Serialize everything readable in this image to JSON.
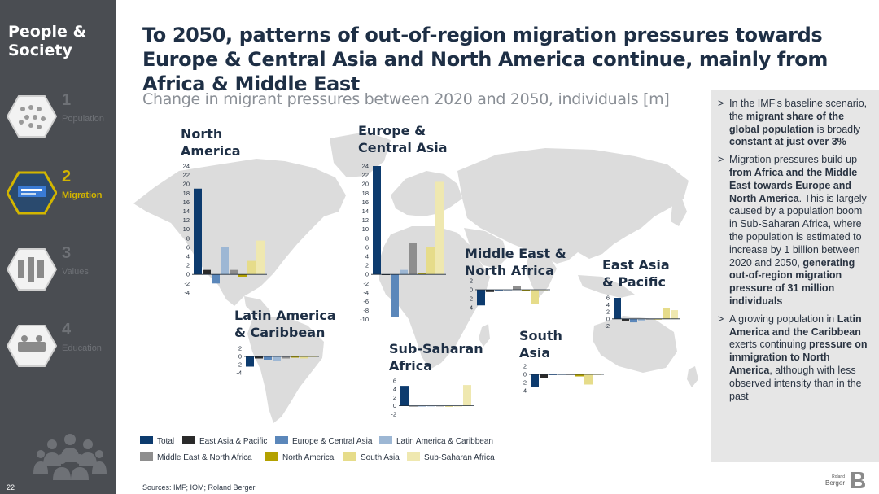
{
  "sidebar": {
    "title": "People & Society",
    "items": [
      {
        "num": "1",
        "label": "Population",
        "active": false
      },
      {
        "num": "2",
        "label": "Migration",
        "active": true
      },
      {
        "num": "3",
        "label": "Values",
        "active": false
      },
      {
        "num": "4",
        "label": "Education",
        "active": false
      }
    ],
    "page_number": "22"
  },
  "header": {
    "title": "To 2050, patterns of out-of-region migration pressures towards Europe & Central Asia and North America continue, mainly from Africa & Middle East",
    "subtitle": "Change in migrant pressures between 2020 and 2050, individuals [m]"
  },
  "colors": {
    "Total": "#0d3b6e",
    "East Asia & Pacific": "#2a2a2a",
    "Europe & Central Asia": "#5b87ba",
    "Latin America & Caribbean": "#9db7d4",
    "Middle East & North Africa": "#8e8e8e",
    "North America": "#b3a100",
    "South Asia": "#e6dc8a",
    "Sub-Saharan Africa": "#efe8b0"
  },
  "chart_data": [
    {
      "type": "bar",
      "region": "North America",
      "series": [
        "Total",
        "East Asia & Pacific",
        "Europe & Central Asia",
        "Latin America & Caribbean",
        "Middle East & North Africa",
        "North America",
        "South Asia",
        "Sub-Saharan Africa"
      ],
      "values": [
        19,
        1,
        -2,
        6,
        1,
        -0.5,
        3,
        7.5
      ],
      "ylim": [
        -4,
        24
      ],
      "ticks": [
        "24",
        "22",
        "20",
        "18",
        "16",
        "14",
        "12",
        "10",
        "8",
        "6",
        "4",
        "2",
        "0",
        "-2",
        "-4"
      ]
    },
    {
      "type": "bar",
      "region": "Europe & Central Asia",
      "series": [
        "Total",
        "East Asia & Pacific",
        "Europe & Central Asia",
        "Latin America & Caribbean",
        "Middle East & North Africa",
        "North America",
        "South Asia",
        "Sub-Saharan Africa"
      ],
      "values": [
        24,
        0,
        -9.5,
        1,
        7,
        0.2,
        6,
        20.5
      ],
      "ylim": [
        -10,
        24
      ],
      "ticks": [
        "24",
        "22",
        "20",
        "18",
        "16",
        "14",
        "12",
        "10",
        "8",
        "6",
        "4",
        "2",
        "0",
        "-2",
        "-4",
        "-6",
        "-8",
        "-10"
      ]
    },
    {
      "type": "bar",
      "region": "Middle East & North Africa",
      "series": [
        "Total",
        "East Asia & Pacific",
        "Europe & Central Asia",
        "Latin America & Caribbean",
        "Middle East & North Africa",
        "North America",
        "South Asia",
        "Sub-Saharan Africa"
      ],
      "values": [
        -3.5,
        -0.5,
        -0.3,
        0,
        0.8,
        -0.3,
        -3.2,
        0
      ],
      "ylim": [
        -4,
        2
      ],
      "ticks": [
        "2",
        "0",
        "-2",
        "-4"
      ]
    },
    {
      "type": "bar",
      "region": "East Asia & Pacific",
      "series": [
        "Total",
        "East Asia & Pacific",
        "Europe & Central Asia",
        "Latin America & Caribbean",
        "Middle East & North Africa",
        "North America",
        "South Asia",
        "Sub-Saharan Africa"
      ],
      "values": [
        6,
        -0.5,
        -1,
        -0.5,
        0,
        0,
        3,
        2.5
      ],
      "ylim": [
        -2,
        6
      ],
      "ticks": [
        "6",
        "4",
        "2",
        "0",
        "-2"
      ]
    },
    {
      "type": "bar",
      "region": "Latin America & Caribbean",
      "series": [
        "Total",
        "East Asia & Pacific",
        "Europe & Central Asia",
        "Latin America & Caribbean",
        "Middle East & North Africa",
        "North America",
        "South Asia",
        "Sub-Saharan Africa"
      ],
      "values": [
        -2.5,
        -0.5,
        -0.8,
        -1,
        -0.5,
        -0.3,
        -0.5,
        -0.2
      ],
      "ylim": [
        -4,
        2
      ],
      "ticks": [
        "2",
        "0",
        "-2",
        "-4"
      ]
    },
    {
      "type": "bar",
      "region": "Sub-Saharan Africa",
      "series": [
        "Total",
        "East Asia & Pacific",
        "Europe & Central Asia",
        "Latin America & Caribbean",
        "Middle East & North Africa",
        "North America",
        "South Asia",
        "Sub-Saharan Africa"
      ],
      "values": [
        4.8,
        0,
        -0.1,
        -0.1,
        -0.1,
        0,
        -0.1,
        5
      ],
      "ylim": [
        -2,
        6
      ],
      "ticks": [
        "6",
        "4",
        "2",
        "0",
        "-2"
      ]
    },
    {
      "type": "bar",
      "region": "South Asia",
      "series": [
        "Total",
        "East Asia & Pacific",
        "Europe & Central Asia",
        "Latin America & Caribbean",
        "Middle East & North Africa",
        "North America",
        "South Asia",
        "Sub-Saharan Africa"
      ],
      "values": [
        -3,
        -1,
        -0.2,
        0,
        0,
        -0.5,
        -2.5,
        0
      ],
      "ylim": [
        -4,
        2
      ],
      "ticks": [
        "2",
        "0",
        "-2",
        "-4"
      ]
    }
  ],
  "region_labels": {
    "north_america": [
      "North",
      "America"
    ],
    "europe": [
      "Europe &",
      "Central Asia"
    ],
    "mena": [
      "Middle East &",
      "North Africa"
    ],
    "eap": [
      "East Asia",
      "& Pacific"
    ],
    "lac": [
      "Latin America",
      "& Caribbean"
    ],
    "ssa": [
      "Sub-Saharan",
      "Africa"
    ],
    "south_asia": [
      "South",
      "Asia"
    ]
  },
  "legend": [
    "Total",
    "East Asia & Pacific",
    "Europe & Central Asia",
    "Latin America & Caribbean",
    "Middle East & North Africa",
    "North America",
    "South Asia",
    "Sub-Saharan Africa"
  ],
  "info": {
    "b1": {
      "t1": "In the IMF's baseline scenario, the ",
      "b1": "migrant share of the global population",
      "t2": " is broadly ",
      "b2": "constant at just over 3%"
    },
    "b2": {
      "t1": "Migration pressures build up ",
      "b1": "from Africa and the Middle East towards Europe and North America",
      "t2": ". This is largely caused by a population boom in Sub-Saharan Africa, where the population is estimated to increase by 1 billion between 2020 and 2050, ",
      "b2": "generating out-of-region migration pressure of 31 million individuals"
    },
    "b3": {
      "t1": "A growing population in ",
      "b1": "Latin America and the Caribbean",
      "t2": " exerts continuing ",
      "b2": "pressure on immigration to North America",
      "t3": ", although with less observed intensity than in the past"
    }
  },
  "sources": "Sources: IMF; IOM; Roland Berger",
  "logo": {
    "line1": "Roland",
    "line2": "Berger"
  }
}
